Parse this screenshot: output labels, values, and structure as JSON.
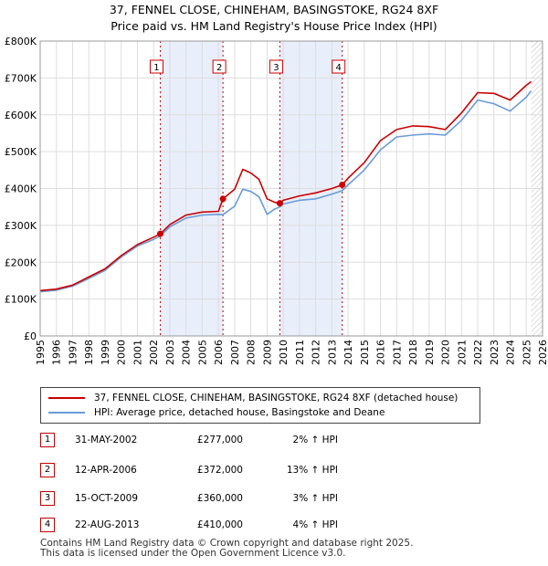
{
  "header": {
    "title": "37, FENNEL CLOSE, CHINEHAM, BASINGSTOKE, RG24 8XF",
    "subtitle": "Price paid vs. HM Land Registry's House Price Index (HPI)"
  },
  "colors": {
    "property": "#cc0000",
    "hpi": "#6a9bd8",
    "band": "#e8eefa",
    "marker_border": "#cc0000",
    "vline": "#cc0000"
  },
  "chart_data": {
    "type": "line",
    "xlim": [
      1995,
      2026
    ],
    "ylim": [
      0,
      800000
    ],
    "y_ticks": [
      0,
      100000,
      200000,
      300000,
      400000,
      500000,
      600000,
      700000,
      800000
    ],
    "y_tick_labels": [
      "£0",
      "£100K",
      "£200K",
      "£300K",
      "£400K",
      "£500K",
      "£600K",
      "£700K",
      "£800K"
    ],
    "x_ticks": [
      1995,
      1996,
      1997,
      1998,
      1999,
      2000,
      2001,
      2002,
      2003,
      2004,
      2005,
      2006,
      2007,
      2008,
      2009,
      2010,
      2011,
      2012,
      2013,
      2014,
      2015,
      2016,
      2017,
      2018,
      2019,
      2020,
      2021,
      2022,
      2023,
      2024,
      2025,
      2026
    ],
    "x_tick_labels": [
      "1995",
      "1996",
      "1997",
      "1998",
      "1999",
      "2000",
      "2001",
      "2002",
      "2003",
      "2004",
      "2005",
      "2006",
      "2007",
      "2008",
      "2009",
      "2010",
      "2011",
      "2012",
      "2013",
      "2014",
      "2015",
      "2016",
      "2017",
      "2018",
      "2019",
      "2020",
      "2021",
      "2022",
      "2023",
      "2024",
      "2025",
      "2026"
    ],
    "grid": true,
    "shaded_ranges": [
      [
        2002.41,
        2006.28
      ],
      [
        2009.79,
        2013.64
      ]
    ],
    "projection_start": 2025.3,
    "series": [
      {
        "name": "37, FENNEL CLOSE, CHINEHAM, BASINGSTOKE, RG24 8XF (detached house)",
        "x": [
          1995.0,
          1996.0,
          1997.0,
          1998.0,
          1999.0,
          2000.0,
          2001.0,
          2002.0,
          2002.41,
          2003.0,
          2004.0,
          2005.0,
          2006.0,
          2006.28,
          2007.0,
          2007.5,
          2008.0,
          2008.5,
          2009.0,
          2009.5,
          2009.79,
          2010.0,
          2011.0,
          2012.0,
          2013.0,
          2013.64,
          2014.0,
          2015.0,
          2016.0,
          2017.0,
          2018.0,
          2019.0,
          2020.0,
          2021.0,
          2022.0,
          2023.0,
          2024.0,
          2025.0,
          2025.3
        ],
        "values": [
          123000,
          127000,
          138000,
          160000,
          182000,
          218000,
          248000,
          268000,
          277000,
          302000,
          328000,
          336000,
          338000,
          372000,
          398000,
          452000,
          442000,
          425000,
          372000,
          362000,
          360000,
          368000,
          380000,
          388000,
          400000,
          410000,
          428000,
          470000,
          530000,
          560000,
          570000,
          568000,
          560000,
          605000,
          660000,
          658000,
          640000,
          680000,
          690000
        ]
      },
      {
        "name": "HPI: Average price, detached house, Basingstoke and Deane",
        "x": [
          1995.0,
          1996.0,
          1997.0,
          1998.0,
          1999.0,
          2000.0,
          2001.0,
          2002.0,
          2002.41,
          2003.0,
          2004.0,
          2005.0,
          2006.0,
          2006.28,
          2007.0,
          2007.5,
          2008.0,
          2008.5,
          2009.0,
          2009.5,
          2009.79,
          2010.0,
          2011.0,
          2012.0,
          2013.0,
          2013.64,
          2014.0,
          2015.0,
          2016.0,
          2017.0,
          2018.0,
          2019.0,
          2020.0,
          2021.0,
          2022.0,
          2023.0,
          2024.0,
          2025.0,
          2025.3
        ],
        "values": [
          120000,
          124000,
          135000,
          156000,
          178000,
          214000,
          244000,
          262000,
          271000,
          296000,
          320000,
          328000,
          330000,
          329000,
          352000,
          398000,
          392000,
          378000,
          330000,
          345000,
          350000,
          358000,
          368000,
          372000,
          385000,
          394000,
          410000,
          450000,
          505000,
          540000,
          545000,
          548000,
          545000,
          585000,
          640000,
          630000,
          610000,
          648000,
          665000
        ]
      }
    ],
    "transactions": [
      {
        "label": "1",
        "x": 2002.41,
        "price": 277000,
        "date": "31-MAY-2002",
        "price_label": "£277,000",
        "hpi": "2% ↑ HPI"
      },
      {
        "label": "2",
        "x": 2006.28,
        "price": 372000,
        "date": "12-APR-2006",
        "price_label": "£372,000",
        "hpi": "13% ↑ HPI"
      },
      {
        "label": "3",
        "x": 2009.79,
        "price": 360000,
        "date": "15-OCT-2009",
        "price_label": "£360,000",
        "hpi": "3% ↑ HPI"
      },
      {
        "label": "4",
        "x": 2013.64,
        "price": 410000,
        "date": "22-AUG-2013",
        "price_label": "£410,000",
        "hpi": "4% ↑ HPI"
      }
    ]
  },
  "legend": {
    "property_label": "37, FENNEL CLOSE, CHINEHAM, BASINGSTOKE, RG24 8XF (detached house)",
    "hpi_label": "HPI: Average price, detached house, Basingstoke and Deane"
  },
  "footer": {
    "line1": "Contains HM Land Registry data © Crown copyright and database right 2025.",
    "line2": "This data is licensed under the Open Government Licence v3.0."
  }
}
